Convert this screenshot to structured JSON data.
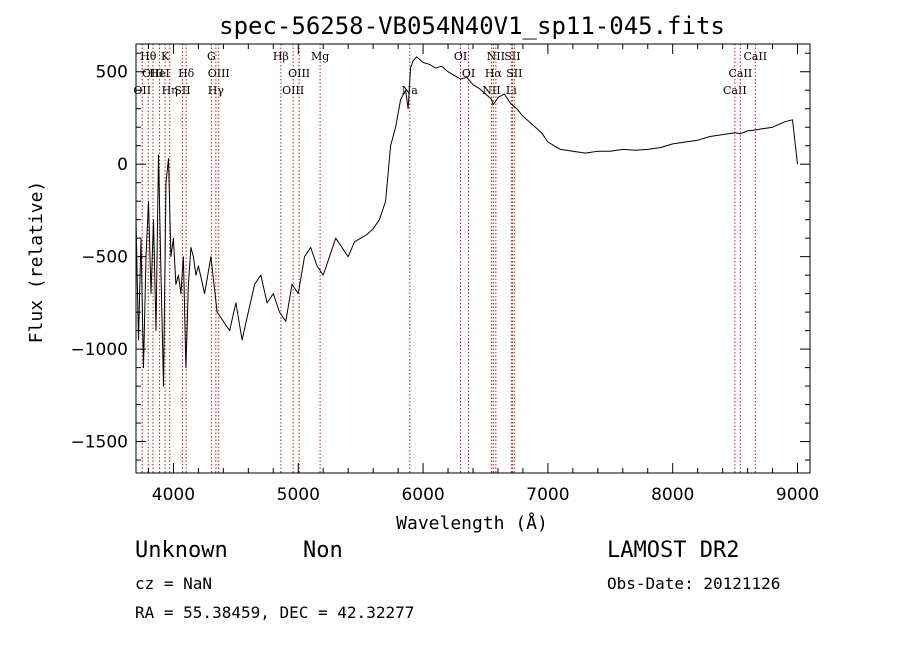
{
  "chart_data": {
    "type": "line",
    "title": "spec-56258-VB054N40V1_sp11-045.fits",
    "xlabel": "Wavelength (Å)",
    "ylabel": "Flux (relative)",
    "xlim": [
      3700,
      9100
    ],
    "ylim": [
      -1670,
      650
    ],
    "xticks": [
      4000,
      5000,
      6000,
      7000,
      8000,
      9000
    ],
    "yticks": [
      -1500,
      -1000,
      -500,
      0,
      500
    ],
    "grid": false,
    "line_color": "#000000",
    "marker_color": "#b22222",
    "series": [
      {
        "x": [
          3700,
          3720,
          3740,
          3760,
          3780,
          3800,
          3820,
          3840,
          3860,
          3880,
          3900,
          3920,
          3940,
          3960,
          3980,
          4000,
          4020,
          4040,
          4060,
          4080,
          4100,
          4120,
          4140,
          4160,
          4180,
          4200,
          4250,
          4300,
          4350,
          4400,
          4450,
          4500,
          4550,
          4600,
          4650,
          4700,
          4750,
          4800,
          4850,
          4900,
          4950,
          5000,
          5050,
          5100,
          5150,
          5200,
          5250,
          5300,
          5350,
          5400,
          5450,
          5500,
          5550,
          5600,
          5650,
          5700,
          5740,
          5780,
          5820,
          5860,
          5880,
          5900,
          5920,
          5950,
          6000,
          6050,
          6100,
          6150,
          6200,
          6250,
          6300,
          6350,
          6400,
          6450,
          6500,
          6550,
          6560,
          6600,
          6650,
          6700,
          6750,
          6800,
          6850,
          6900,
          6950,
          7000,
          7050,
          7100,
          7200,
          7300,
          7400,
          7500,
          7600,
          7700,
          7800,
          7900,
          8000,
          8100,
          8200,
          8300,
          8400,
          8500,
          8542,
          8600,
          8662,
          8700,
          8800,
          8900,
          8960,
          9000
        ],
        "y": [
          -300,
          -950,
          -400,
          -1100,
          -500,
          -200,
          -700,
          -300,
          -900,
          50,
          -600,
          -1200,
          -100,
          30,
          -500,
          -400,
          -650,
          -600,
          -700,
          -500,
          -1100,
          -650,
          -450,
          -500,
          -600,
          -550,
          -700,
          -500,
          -800,
          -850,
          -900,
          -750,
          -950,
          -800,
          -650,
          -600,
          -750,
          -700,
          -800,
          -850,
          -650,
          -700,
          -500,
          -450,
          -550,
          -600,
          -500,
          -400,
          -450,
          -500,
          -420,
          -400,
          -380,
          -350,
          -300,
          -200,
          100,
          200,
          350,
          400,
          300,
          520,
          560,
          580,
          550,
          540,
          520,
          530,
          500,
          480,
          460,
          470,
          430,
          410,
          380,
          350,
          320,
          360,
          380,
          330,
          300,
          260,
          230,
          200,
          170,
          120,
          100,
          80,
          70,
          60,
          70,
          70,
          80,
          75,
          80,
          90,
          110,
          120,
          130,
          150,
          160,
          170,
          165,
          180,
          185,
          190,
          200,
          230,
          240,
          0
        ]
      }
    ],
    "lines": [
      {
        "x": 3750,
        "label": "OII",
        "row": 2
      },
      {
        "x": 3798,
        "label": "Hθ",
        "row": 0
      },
      {
        "x": 3836,
        "label": "OIII",
        "row": 1
      },
      {
        "x": 3889,
        "label": "HeI",
        "row": 1
      },
      {
        "x": 3933,
        "label": "K",
        "row": 0
      },
      {
        "x": 3970,
        "label": "Hη",
        "row": 2
      },
      {
        "x": 4072,
        "label": "SII",
        "row": 2
      },
      {
        "x": 4102,
        "label": "Hδ",
        "row": 1
      },
      {
        "x": 4304,
        "label": "G",
        "row": 0
      },
      {
        "x": 4340,
        "label": "Hγ",
        "row": 2
      },
      {
        "x": 4363,
        "label": "OIII",
        "row": 1
      },
      {
        "x": 4861,
        "label": "Hβ",
        "row": 0
      },
      {
        "x": 4959,
        "label": "OIII",
        "row": 2
      },
      {
        "x": 5007,
        "label": "OIII",
        "row": 1
      },
      {
        "x": 5175,
        "label": "Mg",
        "row": 0
      },
      {
        "x": 5893,
        "label": "Na",
        "row": 2
      },
      {
        "x": 6300,
        "label": "OI",
        "row": 0
      },
      {
        "x": 6364,
        "label": "OI",
        "row": 1
      },
      {
        "x": 6548,
        "label": "NII",
        "row": 2
      },
      {
        "x": 6563,
        "label": "Hα",
        "row": 1
      },
      {
        "x": 6583,
        "label": "NII",
        "row": 0
      },
      {
        "x": 6707,
        "label": "Li",
        "row": 2
      },
      {
        "x": 6716,
        "label": "SII",
        "row": 0
      },
      {
        "x": 6731,
        "label": "SII",
        "row": 1
      },
      {
        "x": 8498,
        "label": "CaII",
        "row": 2
      },
      {
        "x": 8542,
        "label": "CaII",
        "row": 1
      },
      {
        "x": 8662,
        "label": "CaII",
        "row": 0
      }
    ]
  },
  "info": {
    "class": "Unknown",
    "subclass": "Non",
    "survey": "LAMOST DR2",
    "cz": "cz = NaN",
    "obs_date": "Obs-Date: 20121126",
    "coords": "RA =  55.38459, DEC =  42.32277"
  }
}
